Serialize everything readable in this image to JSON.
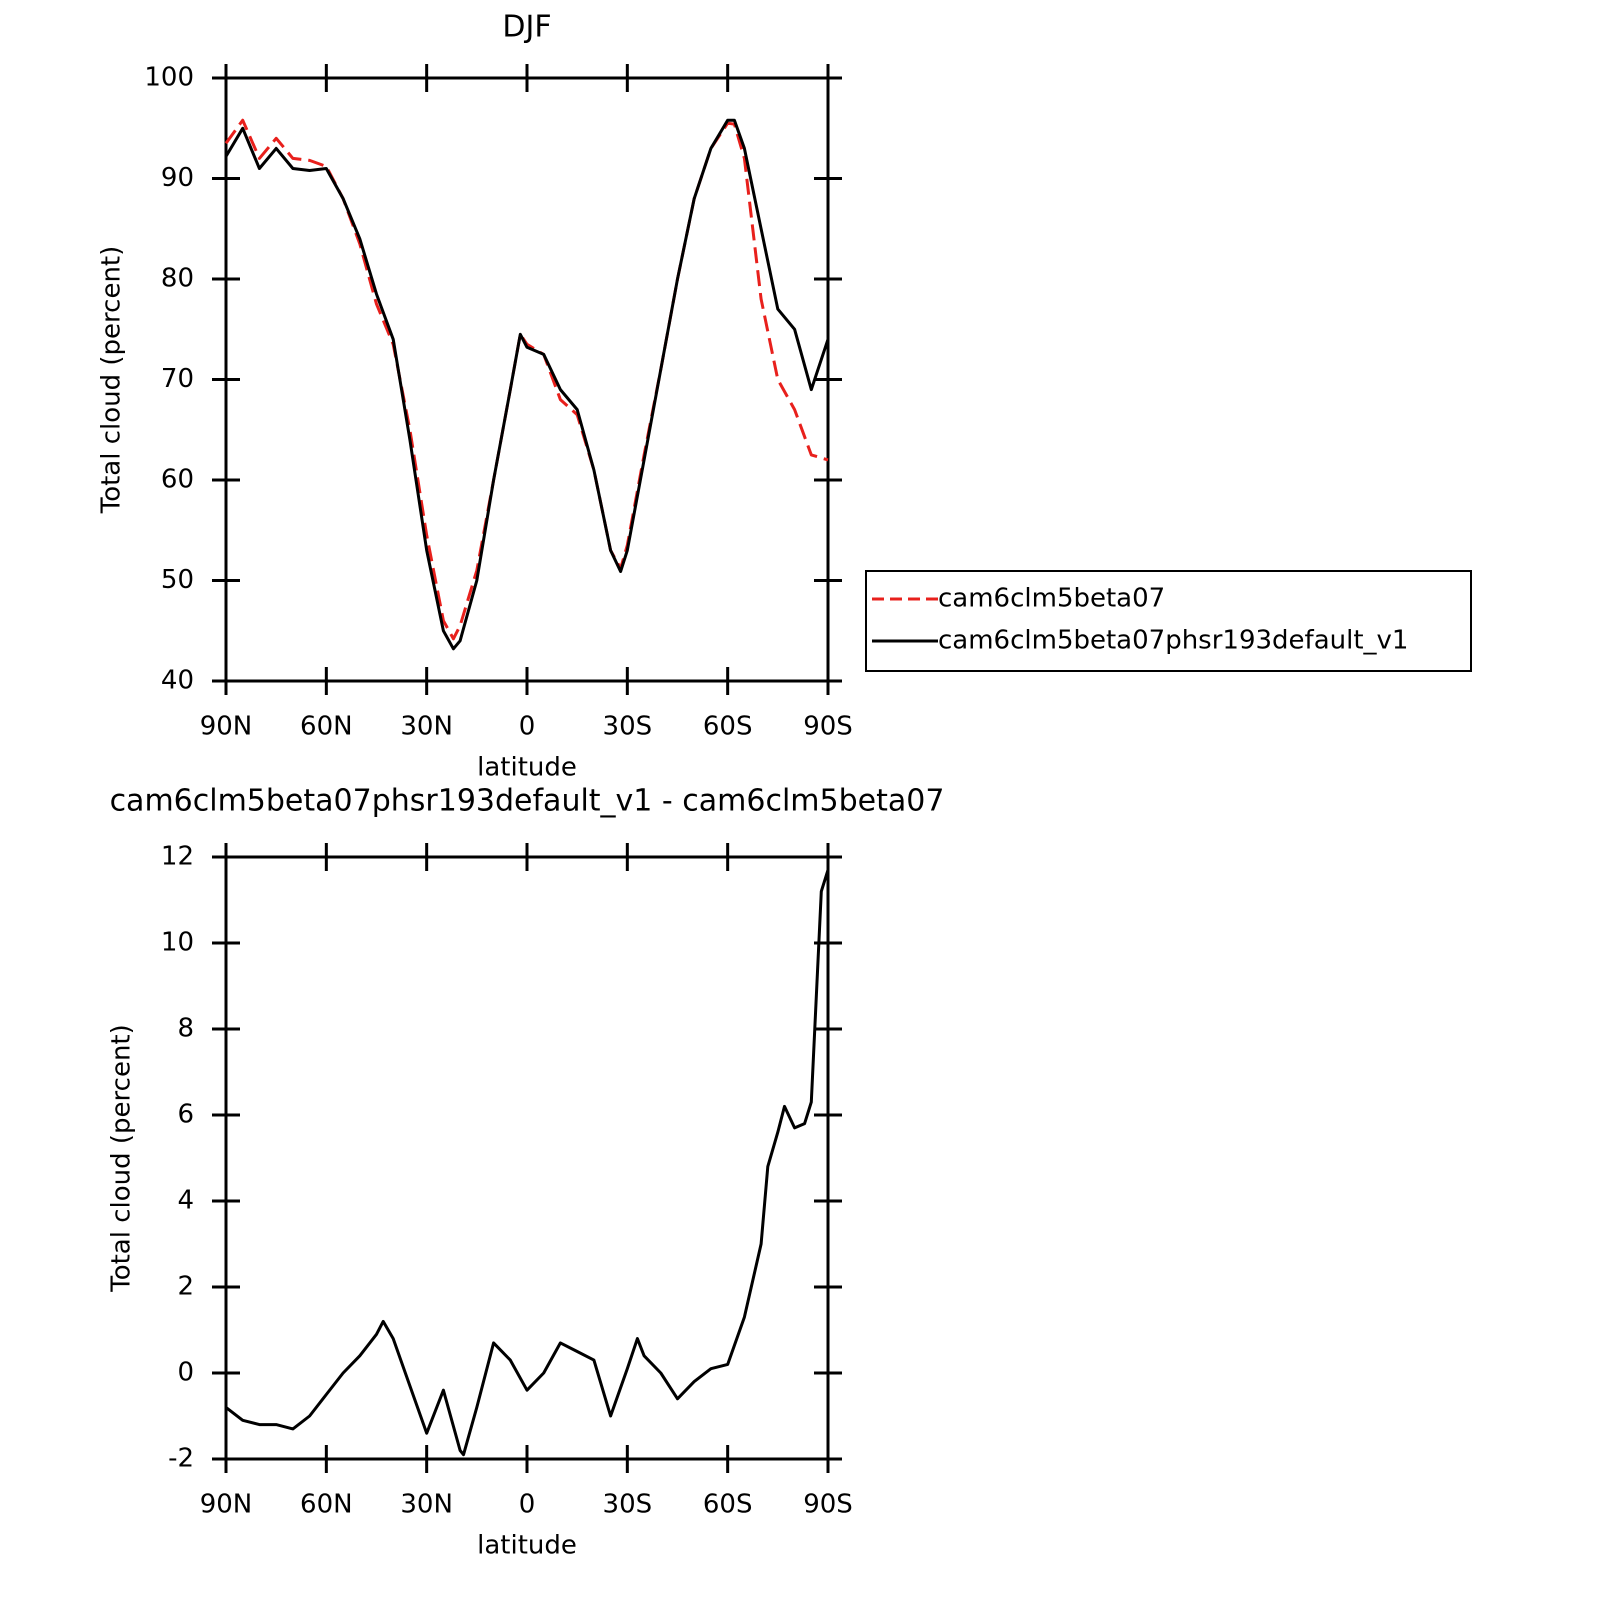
{
  "chart_data": [
    {
      "type": "line",
      "title": "DJF",
      "xlabel": "latitude",
      "ylabel": "Total cloud (percent)",
      "x": [
        90,
        85,
        80,
        75,
        70,
        65,
        60,
        55,
        50,
        45,
        40,
        35,
        30,
        25,
        22,
        20,
        15,
        10,
        5,
        2,
        0,
        -5,
        -10,
        -15,
        -20,
        -25,
        -28,
        -30,
        -35,
        -40,
        -45,
        -50,
        -55,
        -60,
        -62,
        -65,
        -70,
        -75,
        -80,
        -85,
        -90
      ],
      "series": [
        {
          "name": "cam6clm5beta07",
          "color": "#e8201c",
          "line_style": "dashed",
          "values": [
            93.5,
            95.8,
            92,
            94,
            92,
            91.8,
            91.2,
            88,
            83.5,
            77.5,
            73.5,
            65,
            54.5,
            46,
            44.2,
            45.5,
            51,
            60,
            69,
            74.5,
            73.5,
            72.5,
            68,
            66.5,
            61,
            53,
            51.2,
            53.5,
            62.5,
            71,
            80,
            88,
            93,
            95.5,
            95.4,
            92,
            78,
            70,
            67,
            62.5,
            62
          ]
        },
        {
          "name": "cam6clm5beta07phsr193default_v1",
          "color": "#000000",
          "line_style": "solid",
          "values": [
            92.2,
            95,
            91,
            93,
            91,
            90.8,
            91,
            88,
            84,
            78.5,
            74,
            64,
            53,
            45,
            43.2,
            44,
            50,
            60,
            69,
            74.5,
            73.2,
            72.5,
            69,
            67,
            61,
            53,
            50.9,
            53,
            62,
            71,
            80,
            88,
            93,
            95.8,
            95.8,
            93,
            85,
            77,
            75,
            69,
            74
          ]
        }
      ],
      "xlim": [
        90,
        -90
      ],
      "xticks": [
        {
          "value": 90,
          "label": "90N"
        },
        {
          "value": 60,
          "label": "60N"
        },
        {
          "value": 30,
          "label": "30N"
        },
        0,
        {
          "value": -30,
          "label": "30S"
        },
        {
          "value": -60,
          "label": "60S"
        },
        {
          "value": -90,
          "label": "90S"
        }
      ],
      "ylim": [
        40,
        100
      ],
      "yticks": [
        40,
        50,
        60,
        70,
        80,
        90,
        100
      ],
      "legend": "outside-right"
    },
    {
      "type": "line",
      "title": "cam6clm5beta07phsr193default_v1 - cam6clm5beta07",
      "xlabel": "latitude",
      "ylabel": "Total cloud (percent)",
      "x": [
        90,
        85,
        80,
        75,
        70,
        65,
        60,
        55,
        50,
        45,
        43,
        40,
        35,
        30,
        25,
        20,
        19,
        15,
        10,
        5,
        0,
        -5,
        -10,
        -15,
        -20,
        -25,
        -30,
        -33,
        -35,
        -40,
        -45,
        -50,
        -55,
        -60,
        -65,
        -70,
        -72,
        -75,
        -77,
        -80,
        -83,
        -85,
        -88,
        -90
      ],
      "series": [
        {
          "color": "#000000",
          "line_style": "solid",
          "values": [
            -0.8,
            -1.1,
            -1.2,
            -1.2,
            -1.3,
            -1.0,
            -0.5,
            0.0,
            0.4,
            0.9,
            1.2,
            0.8,
            -0.3,
            -1.4,
            -0.4,
            -1.8,
            -1.9,
            -0.8,
            0.7,
            0.3,
            -0.4,
            0.0,
            0.7,
            0.5,
            0.3,
            -1.0,
            0.1,
            0.8,
            0.4,
            0.0,
            -0.6,
            -0.2,
            0.1,
            0.2,
            1.3,
            3.0,
            4.8,
            5.6,
            6.2,
            5.7,
            5.8,
            6.3,
            11.2,
            11.7
          ]
        }
      ],
      "xlim": [
        90,
        -90
      ],
      "xticks": [
        {
          "value": 90,
          "label": "90N"
        },
        {
          "value": 60,
          "label": "60N"
        },
        {
          "value": 30,
          "label": "30N"
        },
        0,
        {
          "value": -30,
          "label": "30S"
        },
        {
          "value": -60,
          "label": "60S"
        },
        {
          "value": -90,
          "label": "90S"
        }
      ],
      "ylim": [
        -2,
        12
      ],
      "yticks": [
        -2,
        0,
        2,
        4,
        6,
        8,
        10,
        12
      ]
    }
  ]
}
